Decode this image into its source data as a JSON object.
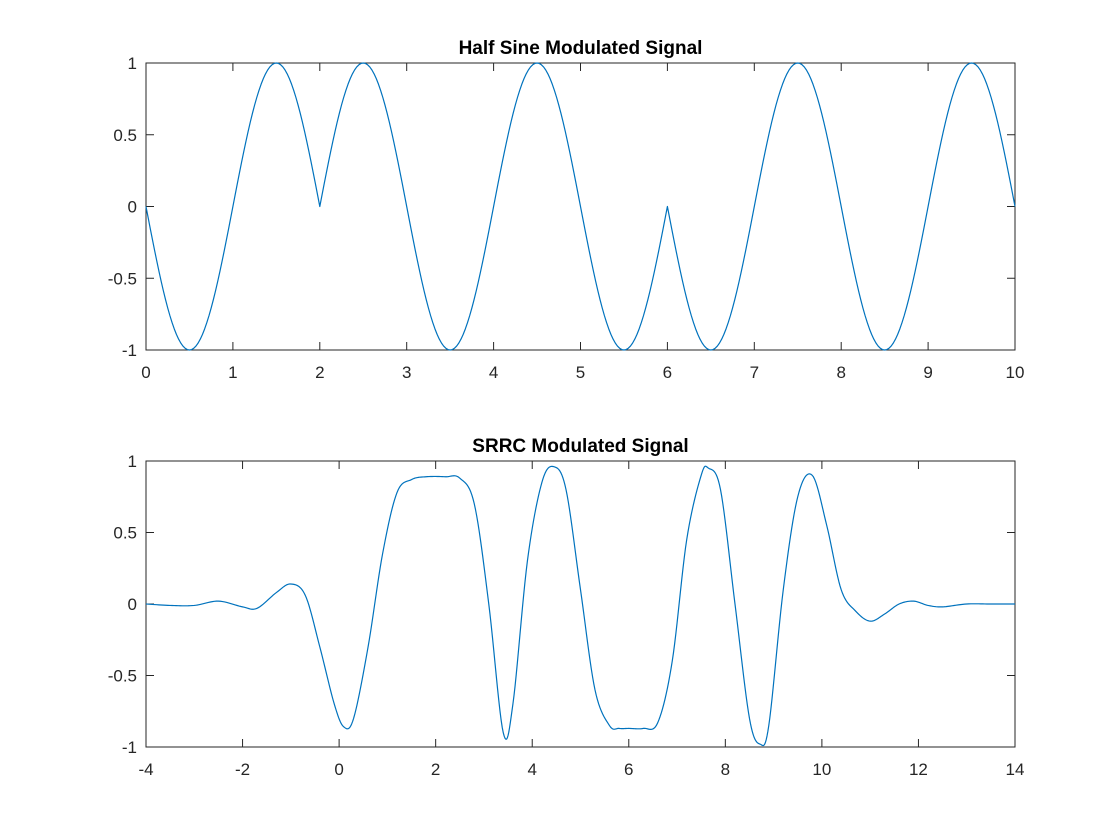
{
  "colors": {
    "series": "#0072BD",
    "axis": "#262626",
    "background": "#ffffff"
  },
  "chart_data": [
    {
      "type": "line",
      "title": "Half Sine Modulated Signal",
      "xlabel": "",
      "ylabel": "",
      "xlim": [
        0,
        10
      ],
      "ylim": [
        -1,
        1
      ],
      "xticks": [
        0,
        1,
        2,
        3,
        4,
        5,
        6,
        7,
        8,
        9,
        10
      ],
      "yticks": [
        -1,
        -0.5,
        0,
        0.5,
        1
      ],
      "xtick_labels": [
        "0",
        "1",
        "2",
        "3",
        "4",
        "5",
        "6",
        "7",
        "8",
        "9",
        "10"
      ],
      "ytick_labels": [
        "-1",
        "-0.5",
        "0",
        "0.5",
        "1"
      ],
      "grid": false,
      "pulse_shape": "half-sine",
      "symbol_period": 2,
      "symbols": [
        -1,
        1,
        1,
        -1,
        1,
        -1,
        -1,
        1,
        -1,
        1
      ],
      "series": [
        {
          "x": [
            0,
            0.5,
            1,
            1.5,
            2,
            2.5,
            3,
            3.5,
            4,
            4.5,
            5,
            5.5,
            6,
            6.5,
            7,
            7.5,
            8,
            8.5,
            9,
            9.5,
            10
          ],
          "values": [
            0,
            -1,
            0,
            1,
            0,
            1,
            0,
            -1,
            0,
            1,
            0,
            -1,
            0,
            -1,
            0,
            1,
            0,
            -1,
            0,
            1,
            0
          ]
        }
      ]
    },
    {
      "type": "line",
      "title": "SRRC Modulated Signal",
      "xlabel": "",
      "ylabel": "",
      "xlim": [
        -4,
        14
      ],
      "ylim": [
        -1,
        1
      ],
      "xticks": [
        -4,
        -2,
        0,
        2,
        4,
        6,
        8,
        10,
        12,
        14
      ],
      "yticks": [
        -1,
        -0.5,
        0,
        0.5,
        1
      ],
      "xtick_labels": [
        "-4",
        "-2",
        "0",
        "2",
        "4",
        "6",
        "8",
        "10",
        "12",
        "14"
      ],
      "ytick_labels": [
        "-1",
        "-0.5",
        "0",
        "0.5",
        "1"
      ],
      "grid": false,
      "series": [
        {
          "x": [
            -4,
            -3.5,
            -3,
            -2.5,
            -2.0,
            -1.7,
            -1.3,
            -1.0,
            -0.7,
            -0.4,
            -0.1,
            0.1,
            0.3,
            0.6,
            0.9,
            1.2,
            1.5,
            1.8,
            2.2,
            2.5,
            2.8,
            3.1,
            3.4,
            3.6,
            3.9,
            4.2,
            4.45,
            4.7,
            5.0,
            5.3,
            5.6,
            5.8,
            6.0,
            6.3,
            6.6,
            6.9,
            7.2,
            7.5,
            7.65,
            7.9,
            8.2,
            8.5,
            8.72,
            8.9,
            9.2,
            9.5,
            9.8,
            10.1,
            10.4,
            10.7,
            11.0,
            11.3,
            11.6,
            11.9,
            12.2,
            12.5,
            13.0,
            13.5,
            14.0
          ],
          "values": [
            0.0,
            -0.01,
            -0.01,
            0.02,
            -0.02,
            -0.03,
            0.08,
            0.14,
            0.06,
            -0.3,
            -0.7,
            -0.86,
            -0.8,
            -0.3,
            0.35,
            0.78,
            0.87,
            0.89,
            0.89,
            0.88,
            0.7,
            0.0,
            -0.9,
            -0.7,
            0.3,
            0.85,
            0.96,
            0.8,
            0.1,
            -0.6,
            -0.85,
            -0.87,
            -0.87,
            -0.87,
            -0.83,
            -0.4,
            0.45,
            0.9,
            0.95,
            0.8,
            0.0,
            -0.8,
            -0.98,
            -0.85,
            0.1,
            0.75,
            0.9,
            0.55,
            0.1,
            -0.05,
            -0.12,
            -0.07,
            0.0,
            0.02,
            -0.01,
            -0.02,
            0.0,
            0.0,
            0.0
          ]
        }
      ]
    }
  ]
}
